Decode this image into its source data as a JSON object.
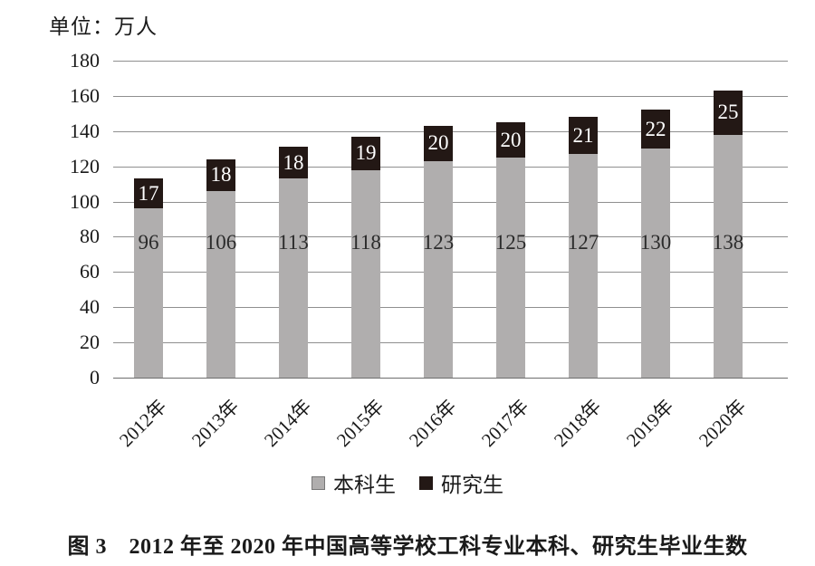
{
  "figure": {
    "unit_label": "单位：万人",
    "caption": "图 3　2012 年至 2020 年中国高等学校工科专业本科、研究生毕业生数"
  },
  "chart_data": {
    "type": "bar",
    "stacked": true,
    "title": "图 3　2012 年至 2020 年中国高等学校工科专业本科、研究生毕业生数",
    "unit_label": "单位：万人",
    "categories": [
      "2012年",
      "2013年",
      "2014年",
      "2015年",
      "2016年",
      "2017年",
      "2018年",
      "2019年",
      "2020年"
    ],
    "series": [
      {
        "name": "本科生",
        "color": "#b0aeae",
        "label_color": "#2b2b2b",
        "values": [
          96,
          106,
          113,
          118,
          123,
          125,
          127,
          130,
          138
        ]
      },
      {
        "name": "研究生",
        "color": "#231815",
        "label_color": "#ffffff",
        "values": [
          17,
          18,
          18,
          19,
          20,
          20,
          21,
          22,
          25
        ]
      }
    ],
    "ylim": [
      0,
      180
    ],
    "ytick_step": 20,
    "yticks": [
      0,
      20,
      40,
      60,
      80,
      100,
      120,
      140,
      160,
      180
    ],
    "grid": true,
    "legend_position": "bottom",
    "xlabel": "",
    "ylabel": "",
    "colors": {
      "gridline": "#8f8f8f",
      "axis": "#6e6e6e",
      "text": "#1a1a1a"
    }
  }
}
